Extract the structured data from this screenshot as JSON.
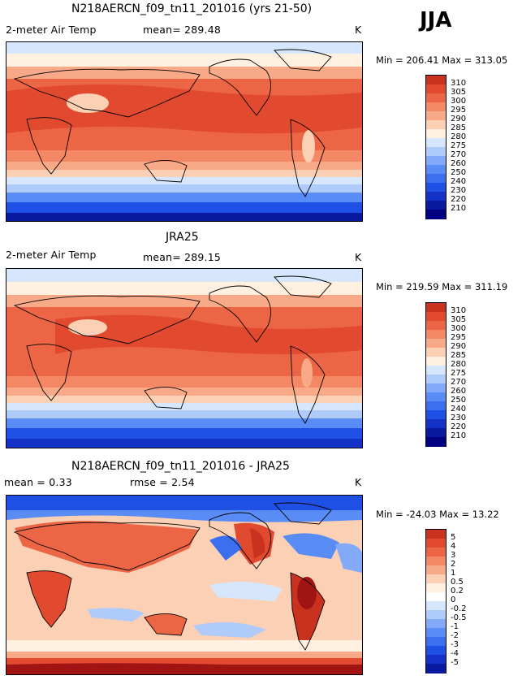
{
  "season": "JJA",
  "colors": {
    "abs_scale": [
      "#000080",
      "#0a1aa0",
      "#1432c8",
      "#1e50e6",
      "#3c6ef0",
      "#5a8cf5",
      "#82aaf8",
      "#aecbfb",
      "#d6e6fc",
      "#fff0e0",
      "#fcd0b4",
      "#f8aa88",
      "#f48764",
      "#ec6646",
      "#e14a2e",
      "#c8321e",
      "#a01414"
    ],
    "diff_scale": [
      "#000080",
      "#0a1aa0",
      "#1432c8",
      "#1e50e6",
      "#3c6ef0",
      "#5a8cf5",
      "#82aaf8",
      "#aecbfb",
      "#d6e6fc",
      "#ffffff",
      "#fff0e0",
      "#fcd0b4",
      "#f8aa88",
      "#f48764",
      "#ec6646",
      "#e14a2e",
      "#c8321e",
      "#a01414"
    ]
  },
  "panels": [
    {
      "title": "N218AERCN_f09_tn11_201016 (yrs 21-50)",
      "variable": "2-meter Air Temp",
      "mean_label": "mean= 289.48",
      "units": "K",
      "minmax": "Min = 206.41 Max = 313.05",
      "colorbar_labels": [
        "310",
        "305",
        "300",
        "295",
        "290",
        "285",
        "280",
        "275",
        "270",
        "260",
        "250",
        "240",
        "230",
        "220",
        "210"
      ]
    },
    {
      "title": "JRA25",
      "variable": "2-meter Air Temp",
      "mean_label": "mean= 289.15",
      "units": "K",
      "minmax": "Min = 219.59 Max = 311.19",
      "colorbar_labels": [
        "310",
        "305",
        "300",
        "295",
        "290",
        "285",
        "280",
        "275",
        "270",
        "260",
        "250",
        "240",
        "230",
        "220",
        "210"
      ]
    },
    {
      "title": "N218AERCN_f09_tn11_201016 - JRA25",
      "variable": "mean =   0.33",
      "mean_label": "rmse =   2.54",
      "units": "K",
      "minmax": "Min = -24.03 Max =  13.22",
      "colorbar_labels": [
        "5",
        "4",
        "3",
        "2",
        "1",
        "0.5",
        "0.2",
        "0",
        "-0.2",
        "-0.5",
        "-1",
        "-2",
        "-3",
        "-4",
        "-5"
      ]
    }
  ]
}
